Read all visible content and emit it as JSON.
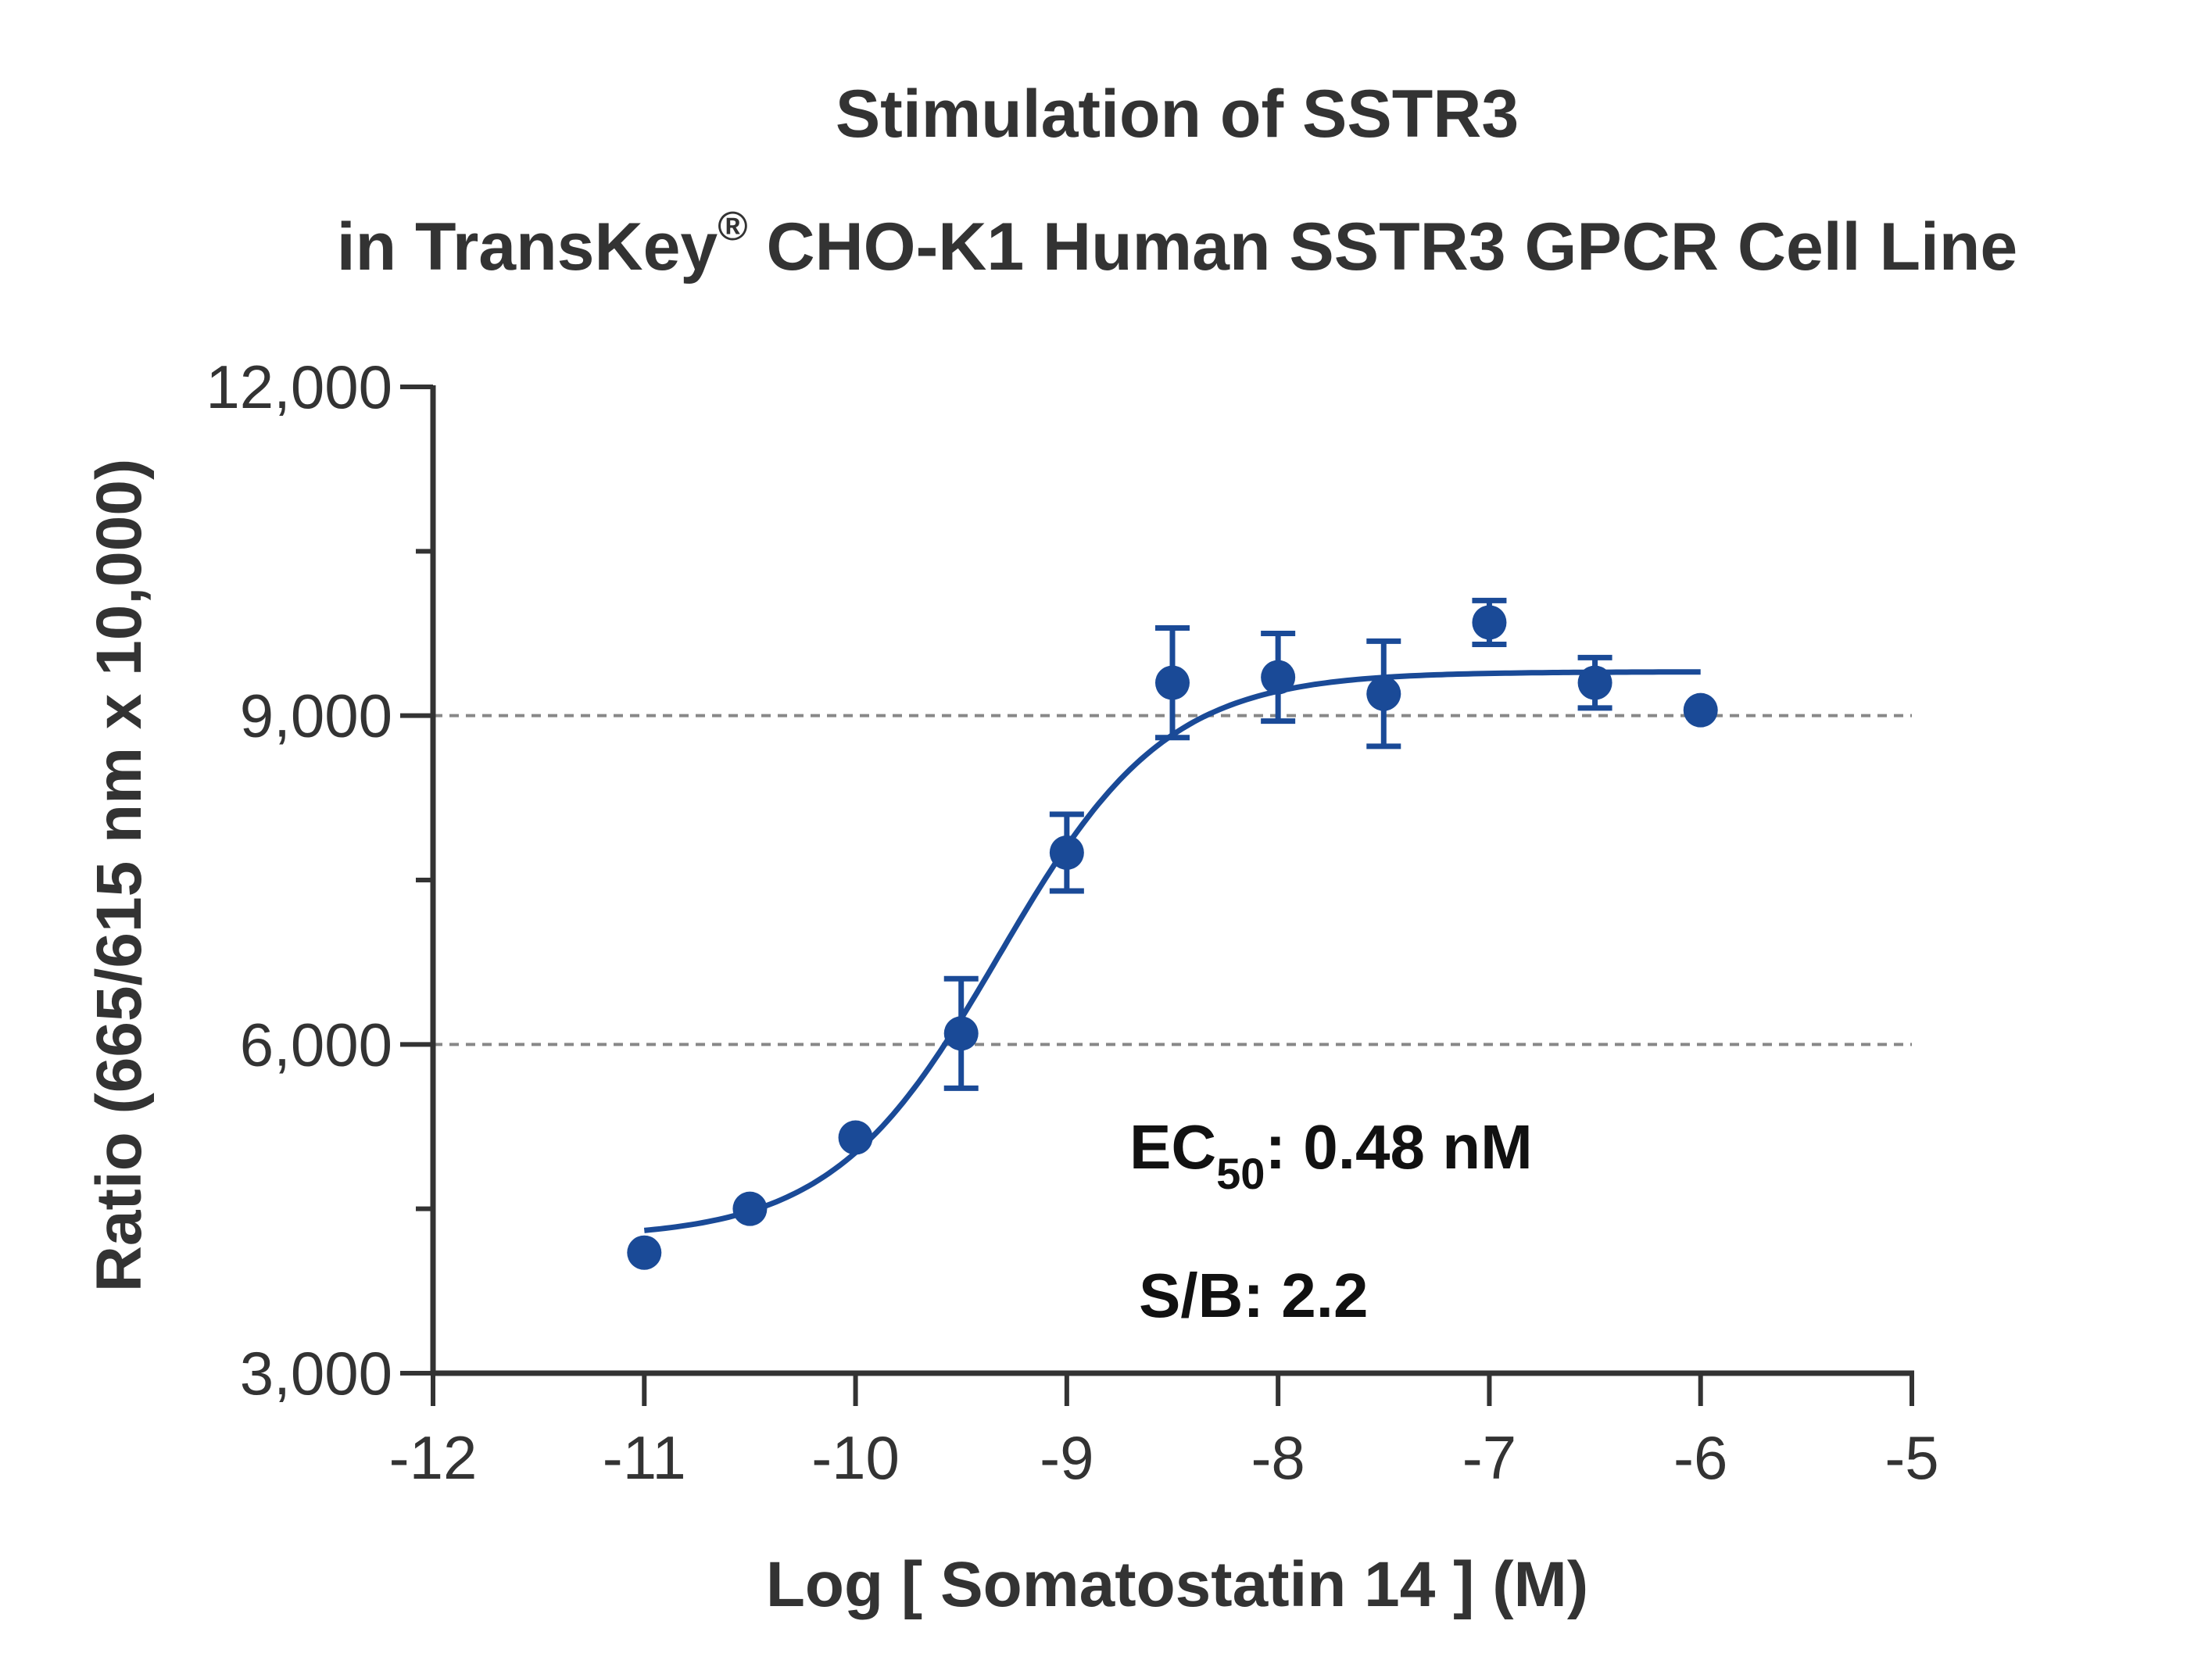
{
  "chart_data": {
    "type": "scatter",
    "title": "Stimulation of  SSTR3",
    "subtitle_prefix": "in TransKey",
    "subtitle_reg": "®",
    "subtitle_suffix": " CHO-K1 Human SSTR3 GPCR Cell Line",
    "xlabel": "Log [ Somatostatin 14 ]  (M)",
    "ylabel": "Ratio (665/615 nm x 10,000)",
    "xlim": [
      -12,
      -5
    ],
    "ylim": [
      3000,
      12000
    ],
    "x_ticks": [
      -12,
      -11,
      -10,
      -9,
      -8,
      -7,
      -6,
      -5
    ],
    "x_tick_labels": [
      "-12",
      "-11",
      "-10",
      "-9",
      "-8",
      "-7",
      "-6",
      "-5"
    ],
    "y_ticks": [
      3000,
      6000,
      9000,
      12000
    ],
    "y_tick_labels": [
      "3,000",
      "6,000",
      "9,000",
      "12,000"
    ],
    "y_minor_ticks": [
      4500,
      7500,
      10500
    ],
    "gridlines_y": [
      6000,
      9000
    ],
    "series": [
      {
        "color": "#1a4a97",
        "x": [
          -11,
          -10.5,
          -10,
          -9.5,
          -9,
          -8.5,
          -8,
          -7.5,
          -7,
          -6.5,
          -6
        ],
        "y": [
          4100,
          4500,
          5150,
          6100,
          7750,
          9300,
          9350,
          9200,
          9850,
          9300,
          9050
        ],
        "error": [
          0,
          0,
          0,
          500,
          350,
          500,
          400,
          480,
          200,
          230,
          0
        ]
      }
    ],
    "fit": {
      "model": "4PL",
      "bottom": 4230,
      "top": 9400,
      "log_ec50": -9.32,
      "hill": 1.1,
      "x_range": [
        -11,
        -6
      ]
    },
    "annotations": {
      "ec50_prefix": "EC",
      "ec50_sub": "50",
      "ec50_value": ": 0.48 nM",
      "sb": "S/B: 2.2"
    }
  }
}
